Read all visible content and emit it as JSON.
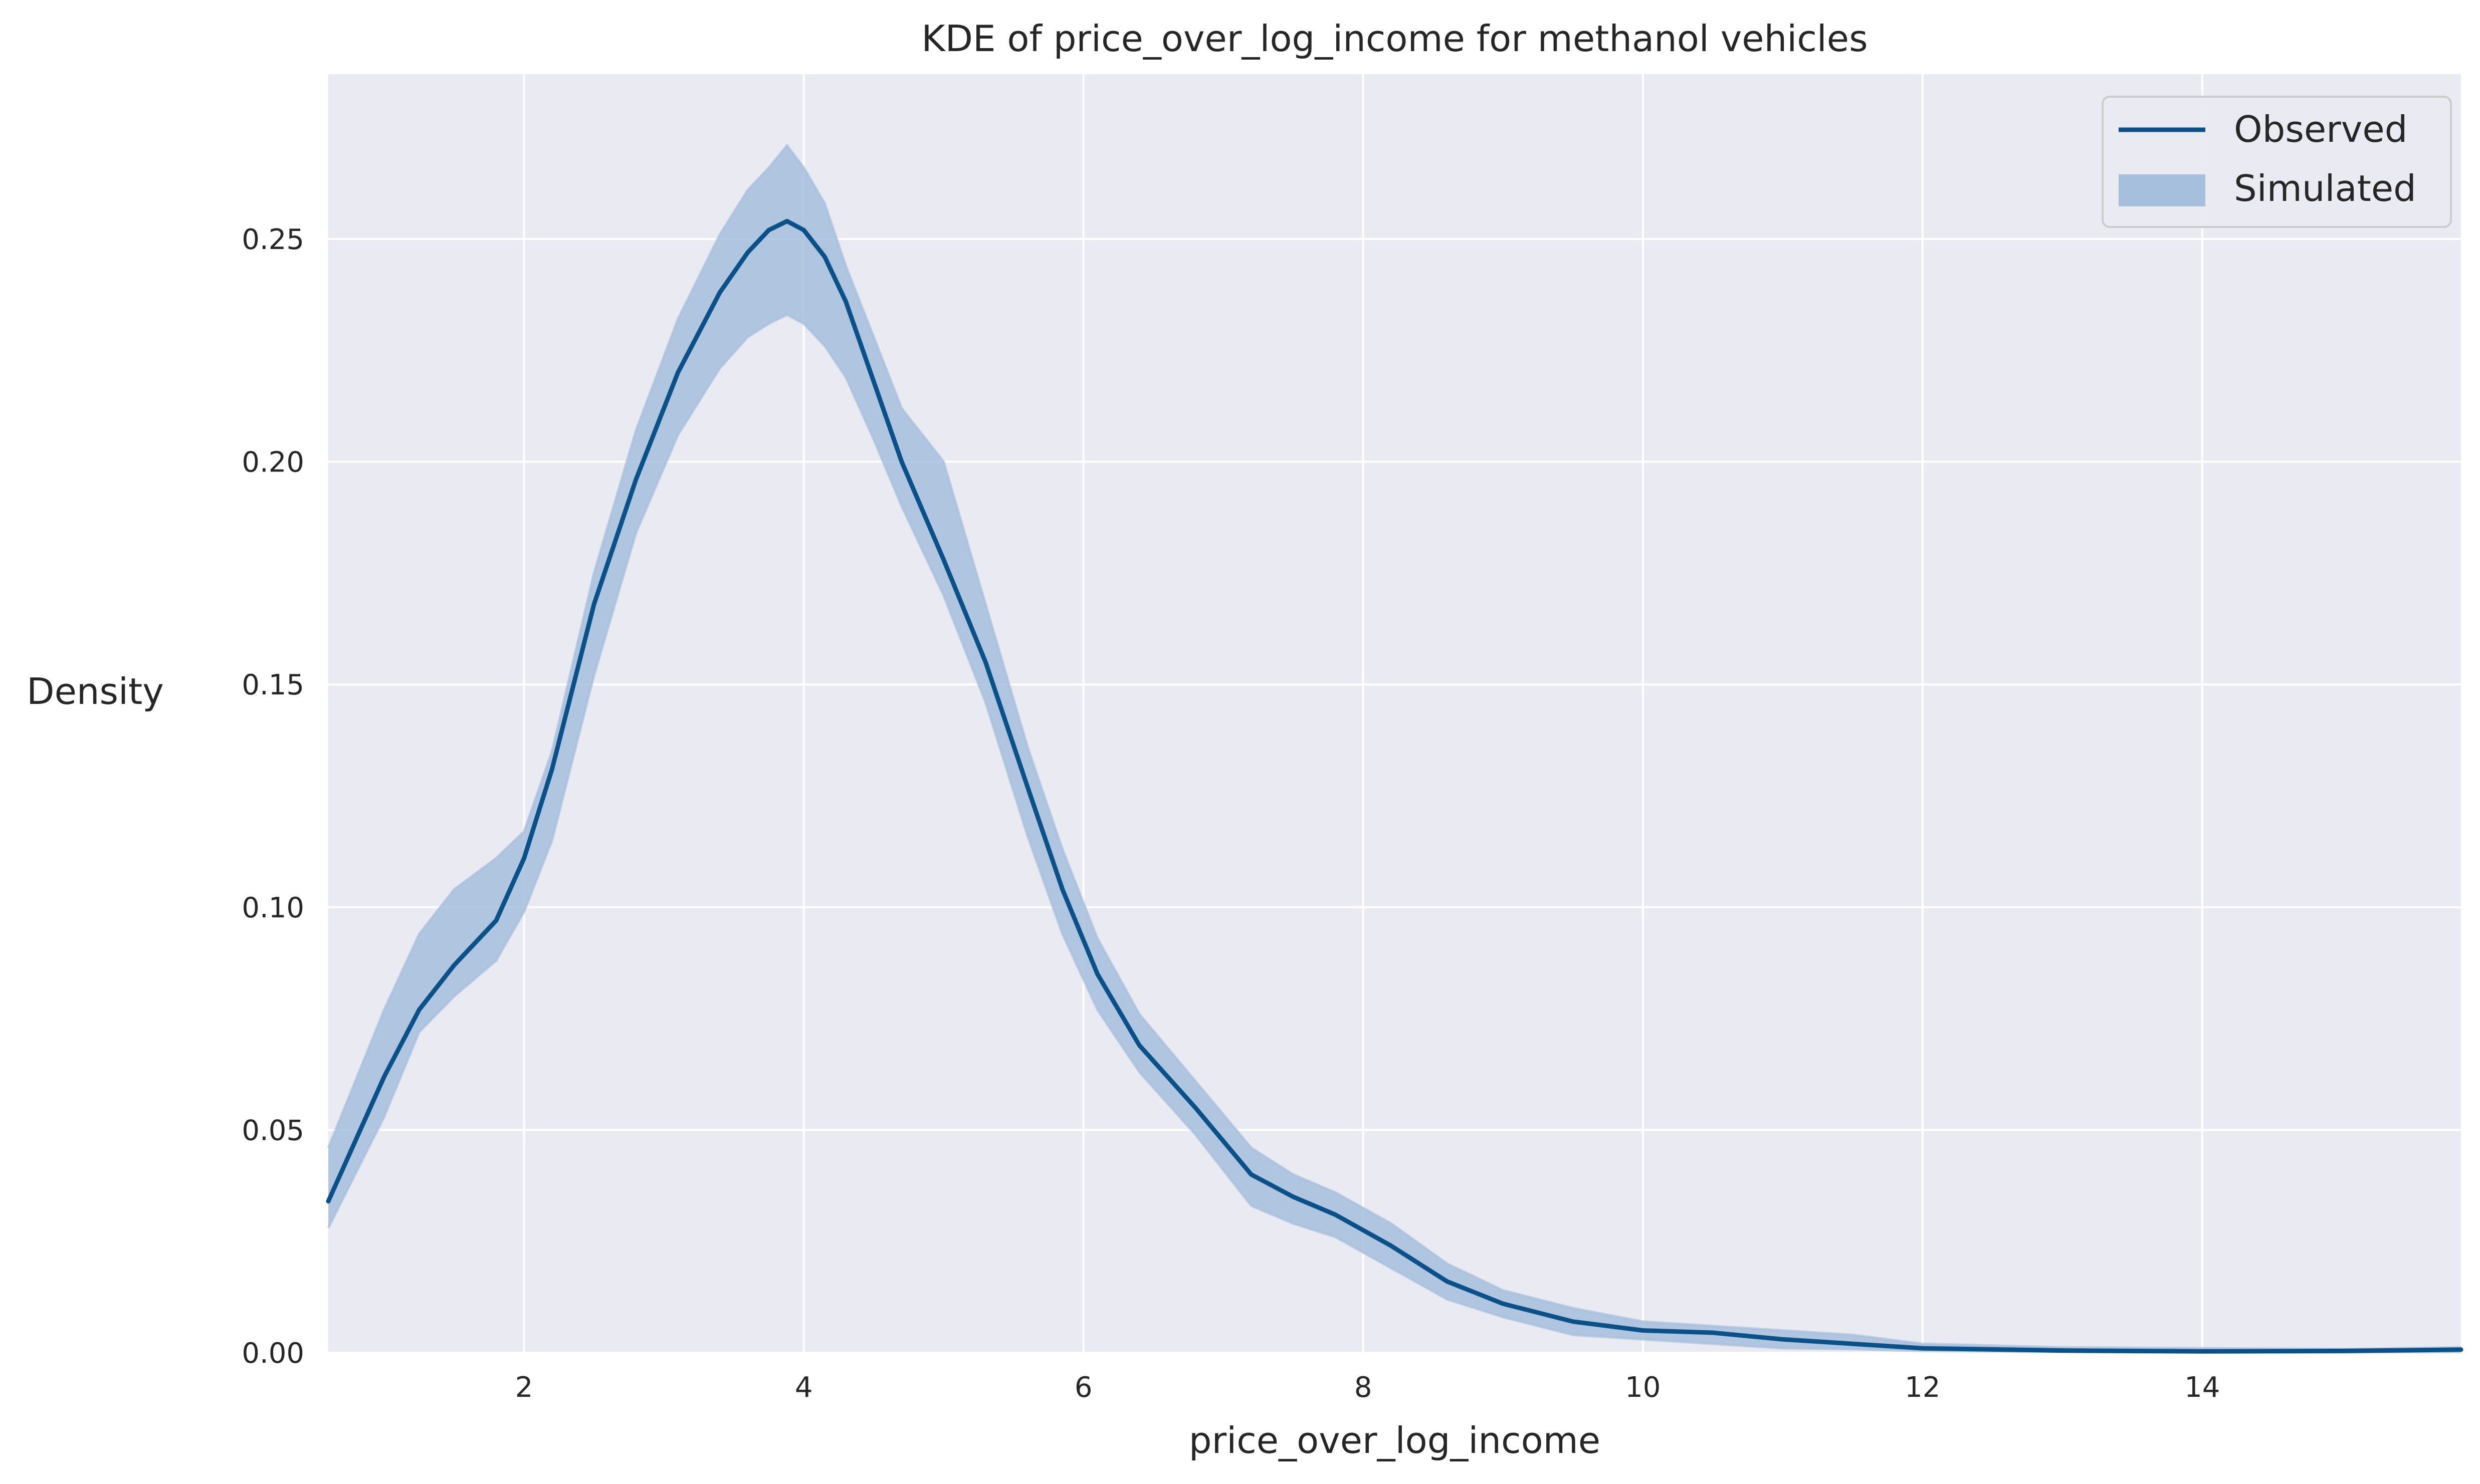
{
  "chart_data": {
    "type": "line",
    "title": "KDE of price_over_log_income for methanol vehicles",
    "xlabel": "price_over_log_income",
    "ylabel": "Density",
    "xlim": [
      0.6,
      15.85
    ],
    "ylim": [
      0,
      0.287
    ],
    "x_ticks": [
      2,
      4,
      6,
      8,
      10,
      12,
      14
    ],
    "y_ticks": [
      0.0,
      0.05,
      0.1,
      0.15,
      0.2,
      0.25
    ],
    "y_tick_labels": [
      "0.00",
      "0.05",
      "0.10",
      "0.15",
      "0.20",
      "0.25"
    ],
    "grid": true,
    "legend_position": "top-right",
    "colors": {
      "observed": "#0b5189",
      "simulated": "#a6bfdd",
      "plot_background": "#eaeaf2",
      "grid": "#ffffff"
    },
    "series": [
      {
        "name": "Observed",
        "style": "line",
        "points": [
          [
            0.6,
            0.034
          ],
          [
            1.0,
            0.062
          ],
          [
            1.25,
            0.077
          ],
          [
            1.5,
            0.087
          ],
          [
            1.8,
            0.097
          ],
          [
            2.0,
            0.111
          ],
          [
            2.2,
            0.131
          ],
          [
            2.5,
            0.168
          ],
          [
            2.8,
            0.196
          ],
          [
            3.1,
            0.22
          ],
          [
            3.4,
            0.238
          ],
          [
            3.6,
            0.247
          ],
          [
            3.75,
            0.252
          ],
          [
            3.88,
            0.254
          ],
          [
            4.0,
            0.252
          ],
          [
            4.15,
            0.246
          ],
          [
            4.3,
            0.236
          ],
          [
            4.5,
            0.218
          ],
          [
            4.7,
            0.2
          ],
          [
            5.0,
            0.178
          ],
          [
            5.3,
            0.155
          ],
          [
            5.6,
            0.127
          ],
          [
            5.85,
            0.104
          ],
          [
            6.1,
            0.085
          ],
          [
            6.4,
            0.069
          ],
          [
            6.8,
            0.055
          ],
          [
            7.2,
            0.04
          ],
          [
            7.5,
            0.035
          ],
          [
            7.8,
            0.031
          ],
          [
            8.2,
            0.024
          ],
          [
            8.6,
            0.016
          ],
          [
            9.0,
            0.011
          ],
          [
            9.5,
            0.007
          ],
          [
            10.0,
            0.005
          ],
          [
            10.5,
            0.0045
          ],
          [
            11.0,
            0.003
          ],
          [
            11.5,
            0.002
          ],
          [
            12.0,
            0.001
          ],
          [
            13.0,
            0.0005
          ],
          [
            14.0,
            0.0003
          ],
          [
            15.0,
            0.0004
          ],
          [
            15.85,
            0.0007
          ]
        ]
      },
      {
        "name": "Simulated",
        "style": "band",
        "points_low": [
          [
            0.6,
            0.028
          ],
          [
            1.0,
            0.053
          ],
          [
            1.25,
            0.072
          ],
          [
            1.5,
            0.08
          ],
          [
            1.8,
            0.088
          ],
          [
            2.0,
            0.099
          ],
          [
            2.2,
            0.115
          ],
          [
            2.5,
            0.152
          ],
          [
            2.8,
            0.184
          ],
          [
            3.1,
            0.206
          ],
          [
            3.4,
            0.221
          ],
          [
            3.6,
            0.228
          ],
          [
            3.75,
            0.231
          ],
          [
            3.88,
            0.233
          ],
          [
            4.0,
            0.231
          ],
          [
            4.15,
            0.226
          ],
          [
            4.3,
            0.219
          ],
          [
            4.5,
            0.205
          ],
          [
            4.7,
            0.19
          ],
          [
            5.0,
            0.17
          ],
          [
            5.3,
            0.146
          ],
          [
            5.6,
            0.116
          ],
          [
            5.85,
            0.094
          ],
          [
            6.1,
            0.077
          ],
          [
            6.4,
            0.063
          ],
          [
            6.8,
            0.049
          ],
          [
            7.2,
            0.033
          ],
          [
            7.5,
            0.029
          ],
          [
            7.8,
            0.026
          ],
          [
            8.2,
            0.019
          ],
          [
            8.6,
            0.012
          ],
          [
            9.0,
            0.008
          ],
          [
            9.5,
            0.004
          ],
          [
            10.0,
            0.003
          ],
          [
            10.5,
            0.002
          ],
          [
            11.0,
            0.001
          ],
          [
            11.5,
            0.0008
          ],
          [
            12.0,
            0.0004
          ],
          [
            13.0,
            0.0002
          ],
          [
            14.0,
            0.0001
          ],
          [
            15.0,
            0.0001
          ],
          [
            15.85,
            0.0002
          ]
        ],
        "points_high": [
          [
            0.6,
            0.046
          ],
          [
            1.0,
            0.077
          ],
          [
            1.25,
            0.094
          ],
          [
            1.5,
            0.104
          ],
          [
            1.8,
            0.111
          ],
          [
            2.0,
            0.117
          ],
          [
            2.2,
            0.135
          ],
          [
            2.5,
            0.175
          ],
          [
            2.8,
            0.207
          ],
          [
            3.1,
            0.232
          ],
          [
            3.4,
            0.251
          ],
          [
            3.6,
            0.261
          ],
          [
            3.75,
            0.266
          ],
          [
            3.88,
            0.271
          ],
          [
            4.0,
            0.266
          ],
          [
            4.15,
            0.258
          ],
          [
            4.3,
            0.244
          ],
          [
            4.5,
            0.228
          ],
          [
            4.7,
            0.212
          ],
          [
            5.0,
            0.2
          ],
          [
            5.3,
            0.168
          ],
          [
            5.6,
            0.136
          ],
          [
            5.85,
            0.113
          ],
          [
            6.1,
            0.093
          ],
          [
            6.4,
            0.076
          ],
          [
            6.8,
            0.061
          ],
          [
            7.2,
            0.046
          ],
          [
            7.5,
            0.04
          ],
          [
            7.8,
            0.036
          ],
          [
            8.2,
            0.029
          ],
          [
            8.6,
            0.02
          ],
          [
            9.0,
            0.014
          ],
          [
            9.5,
            0.01
          ],
          [
            10.0,
            0.007
          ],
          [
            10.5,
            0.006
          ],
          [
            11.0,
            0.005
          ],
          [
            11.5,
            0.004
          ],
          [
            12.0,
            0.002
          ],
          [
            13.0,
            0.0012
          ],
          [
            14.0,
            0.001
          ],
          [
            15.0,
            0.0008
          ],
          [
            15.85,
            0.0012
          ]
        ]
      }
    ]
  }
}
